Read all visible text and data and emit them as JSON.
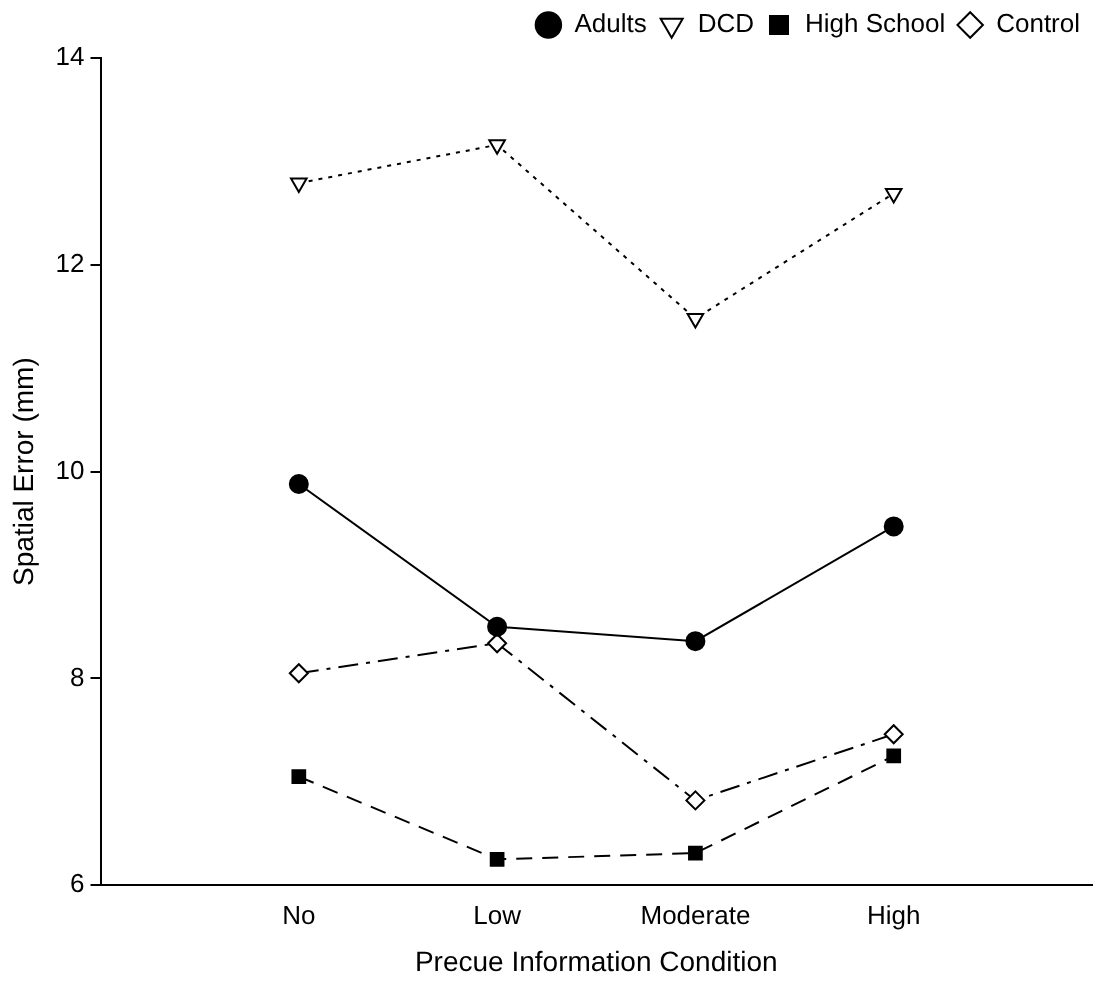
{
  "chart_data": {
    "type": "line",
    "xlabel": "Precue Information Condition",
    "ylabel": "Spatial Error (mm)",
    "categories": [
      "No",
      "Low",
      "Moderate",
      "High"
    ],
    "ylim": [
      6,
      14
    ],
    "yticks": [
      6,
      8,
      10,
      12,
      14
    ],
    "grid": false,
    "legend": "top right",
    "series": [
      {
        "name": "Adults",
        "color": "#000000",
        "values": [
          9.88,
          8.5,
          8.36,
          9.47
        ],
        "marker": "circle",
        "line_style": "solid"
      },
      {
        "name": "DCD",
        "color": "#000000",
        "values": [
          12.79,
          13.16,
          11.48,
          12.69
        ],
        "marker": "triangle",
        "line_style": "dotted"
      },
      {
        "name": "High School",
        "color": "#000000",
        "values": [
          7.05,
          6.25,
          6.31,
          7.25
        ],
        "marker": "square",
        "line_style": "dashed"
      },
      {
        "name": "Control",
        "color": "#000000",
        "values": [
          8.05,
          8.34,
          6.82,
          7.46
        ],
        "marker": "diamond",
        "line_style": "dashdot"
      }
    ]
  }
}
